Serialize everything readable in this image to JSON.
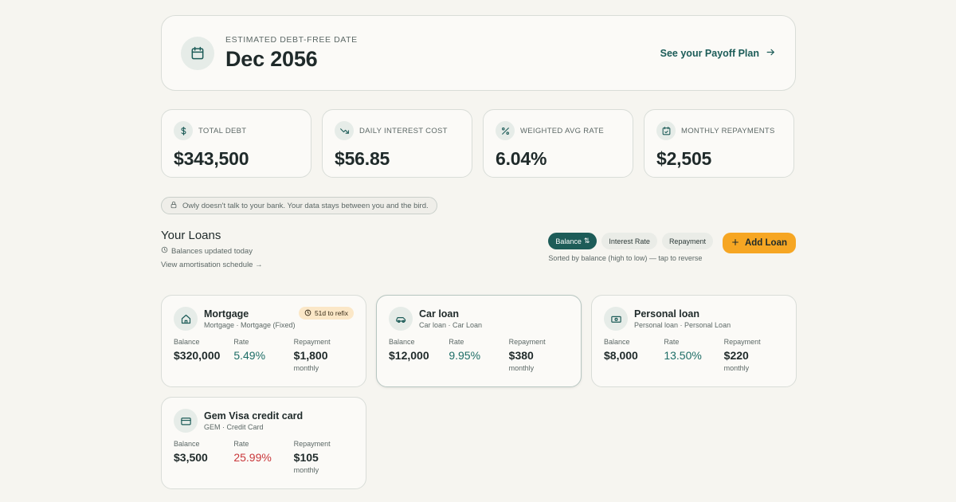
{
  "hero": {
    "label": "ESTIMATED DEBT-FREE DATE",
    "date": "Dec 2056",
    "link_label": "See your Payoff Plan",
    "icon": "calendar-icon"
  },
  "stats": [
    {
      "label": "TOTAL DEBT",
      "value": "$343,500",
      "icon": "dollar-icon"
    },
    {
      "label": "DAILY INTEREST COST",
      "value": "$56.85",
      "icon": "trend-down-icon"
    },
    {
      "label": "WEIGHTED AVG RATE",
      "value": "6.04%",
      "icon": "percent-icon"
    },
    {
      "label": "MONTHLY REPAYMENTS",
      "value": "$2,505",
      "icon": "calendar-check-icon"
    }
  ],
  "privacy_note": "Owly doesn't talk to your bank. Your data stays between you and the bird.",
  "loans_header": {
    "title": "Your Loans",
    "updated": "Balances updated today",
    "schedule_link": "View amortisation schedule →"
  },
  "sort": {
    "options": [
      "Balance",
      "Interest Rate",
      "Repayment"
    ],
    "active": "Balance",
    "active_suffix": "⇅",
    "hint": "Sorted by balance (high to low) — tap to reverse"
  },
  "add_loan_label": "Add Loan",
  "column_labels": {
    "balance": "Balance",
    "rate": "Rate",
    "repayment": "Repayment",
    "per": "monthly"
  },
  "loans": [
    {
      "name": "Mortgage",
      "type": "Mortgage · Mortgage (Fixed)",
      "balance": "$320,000",
      "rate": "5.49%",
      "repayment": "$1,800",
      "badge": "51d to refix",
      "icon": "home-icon"
    },
    {
      "name": "Car loan",
      "type": "Car loan · Car Loan",
      "balance": "$12,000",
      "rate": "9.95%",
      "repayment": "$380",
      "icon": "car-icon"
    },
    {
      "name": "Personal loan",
      "type": "Personal loan · Personal Loan",
      "balance": "$8,000",
      "rate": "13.50%",
      "repayment": "$220",
      "icon": "cash-icon"
    },
    {
      "name": "Gem Visa credit card",
      "type": "GEM · Credit Card",
      "balance": "$3,500",
      "rate": "25.99%",
      "repayment": "$105",
      "icon": "credit-card-icon"
    }
  ],
  "colors": {
    "accent": "#1d5c58",
    "add_button": "#f6a623",
    "rate_normal": "#1d6d66",
    "rate_high": "#c9373a",
    "background": "#f6f5f0"
  }
}
